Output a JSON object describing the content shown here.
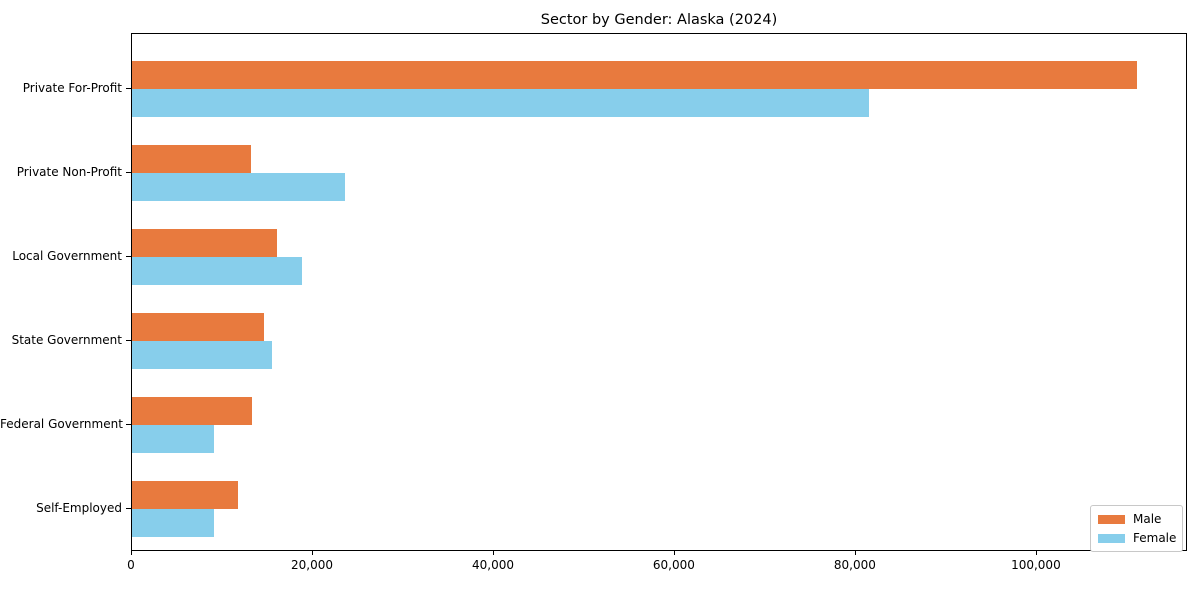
{
  "title": "Sector by Gender: Alaska (2024)",
  "legend": {
    "position": "lower right",
    "items": [
      {
        "label": "Male",
        "color": "#e87a3e"
      },
      {
        "label": "Female",
        "color": "#87ceeb"
      }
    ]
  },
  "chart_data": {
    "type": "bar",
    "orientation": "horizontal",
    "title": "Sector by Gender: Alaska (2024)",
    "xlabel": "",
    "ylabel": "",
    "categories": [
      "Private For-Profit",
      "Private Non-Profit",
      "Local Government",
      "State Government",
      "Federal Government",
      "Self-Employed"
    ],
    "series": [
      {
        "name": "Male",
        "color": "#e87a3e",
        "values": [
          111100,
          13200,
          16000,
          14600,
          13300,
          11700
        ]
      },
      {
        "name": "Female",
        "color": "#87ceeb",
        "values": [
          81400,
          23500,
          18800,
          15500,
          9100,
          9100
        ]
      }
    ],
    "xlim": [
      0,
      116700
    ],
    "xticks": [
      0,
      20000,
      40000,
      60000,
      80000,
      100000
    ],
    "xtick_labels": [
      "0",
      "20,000",
      "40,000",
      "60,000",
      "80,000",
      "100,000"
    ],
    "grid": false,
    "legend_position": "lower right"
  }
}
